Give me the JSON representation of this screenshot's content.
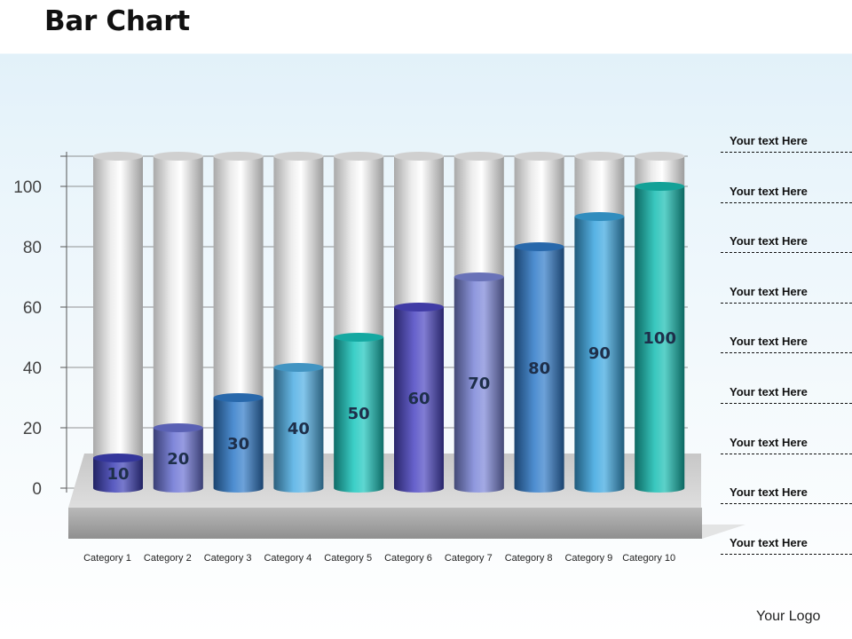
{
  "header": {
    "title": "Bar Chart"
  },
  "chart_data": {
    "type": "bar",
    "categories": [
      "Category 1",
      "Category 2",
      "Category 3",
      "Category 4",
      "Category 5",
      "Category 6",
      "Category 7",
      "Category 8",
      "Category 9",
      "Category 10"
    ],
    "values": [
      10,
      20,
      30,
      40,
      50,
      60,
      70,
      80,
      90,
      100
    ],
    "ylim": [
      0,
      110
    ],
    "yticks": [
      0,
      20,
      40,
      60,
      80,
      100
    ],
    "grid": true,
    "data_labels": true,
    "bar_colors": [
      "#3d3fb6",
      "#6a72d4",
      "#2f7ac9",
      "#4eaee4",
      "#19c6bd",
      "#4b45c2",
      "#7b86d8",
      "#2f7ac9",
      "#3aa6e0",
      "#16bdb2"
    ],
    "background_cylinder_color": "#c9c9c9"
  },
  "side_panel": {
    "items": [
      "Your text Here",
      "Your text Here",
      "Your text Here",
      "Your text Here",
      "Your text Here",
      "Your text Here",
      "Your text Here",
      "Your text Here",
      "Your text Here"
    ]
  },
  "footer": {
    "logo_text": "Your Logo"
  }
}
